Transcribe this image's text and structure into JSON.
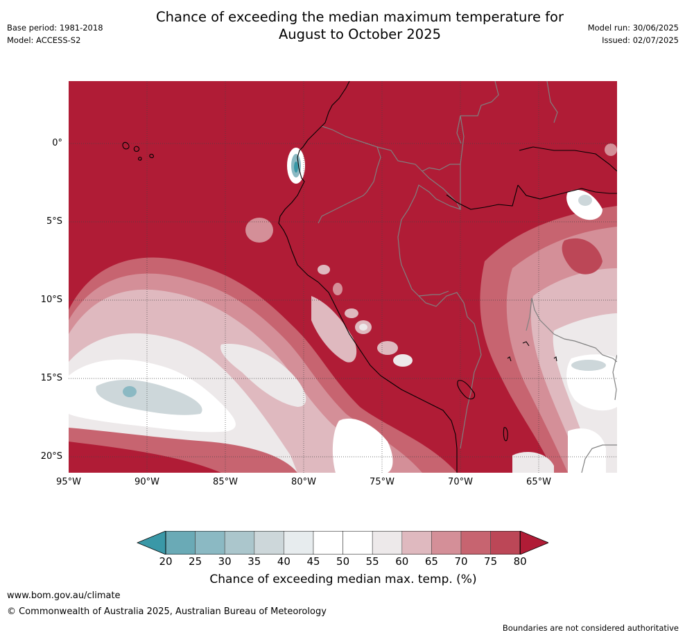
{
  "title": {
    "line1": "Chance of exceeding the median maximum temperature for",
    "line2": "August to October 2025"
  },
  "meta_left": {
    "base_period": "Base period: 1981-2018",
    "model": "Model: ACCESS-S2"
  },
  "meta_right": {
    "model_run": "Model run: 30/06/2025",
    "issued": "Issued: 02/07/2025"
  },
  "map": {
    "lat_labels": [
      "0°",
      "5°S",
      "10°S",
      "15°S",
      "20°S"
    ],
    "lon_labels": [
      "95°W",
      "90°W",
      "85°W",
      "80°W",
      "75°W",
      "70°W",
      "65°W"
    ],
    "dominant_color": "#b01c36",
    "coastline_color": "#000000",
    "border_color": "#808080"
  },
  "legend": {
    "ticks": [
      "20",
      "25",
      "30",
      "35",
      "40",
      "45",
      "50",
      "55",
      "60",
      "65",
      "70",
      "75",
      "80"
    ],
    "colors": [
      "#3a98a7",
      "#6aaab6",
      "#8bb9c3",
      "#abc6cc",
      "#cdd7da",
      "#e7ecee",
      "#ffffff",
      "#ffffff",
      "#ede9ea",
      "#dfb9bf",
      "#d48f98",
      "#c76470",
      "#bc4757",
      "#b01c36"
    ],
    "title": "Chance of exceeding median max. temp. (%)"
  },
  "footer": {
    "website": "www.bom.gov.au/climate",
    "copyright": "© Commonwealth of Australia 2025, Australian Bureau of Meteorology",
    "note": "Boundaries are not considered authoritative"
  }
}
